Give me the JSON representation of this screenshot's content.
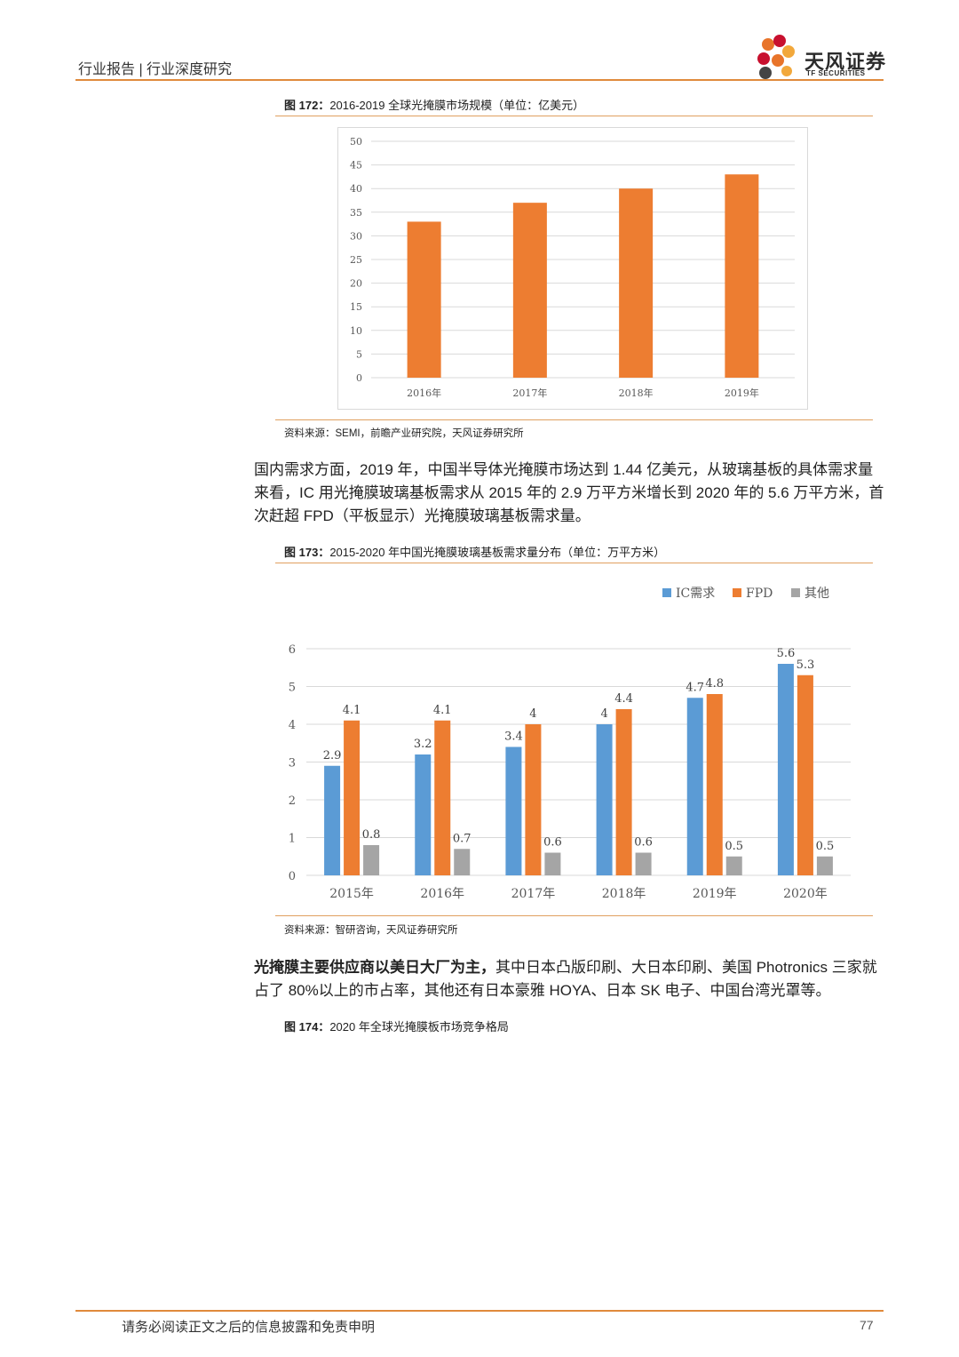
{
  "header": {
    "text": "行业报告 | 行业深度研究"
  },
  "logo": {
    "name": "天风证券",
    "sub": "TF SECURITIES",
    "colors": [
      "#e8742a",
      "#c8102e",
      "#f2a83b",
      "#444444"
    ]
  },
  "fig172": {
    "label": "图 172：",
    "title": "2016-2019 全球光掩膜市场规模（单位：亿美元）",
    "source": "资料来源：SEMI，前瞻产业研究院，天风证券研究所"
  },
  "para1": "国内需求方面，2019 年，中国半导体光掩膜市场达到 1.44 亿美元，从玻璃基板的具体需求量来看，IC 用光掩膜玻璃基板需求从 2015 年的 2.9 万平方米增长到 2020 年的 5.6 万平方米，首次赶超 FPD（平板显示）光掩膜玻璃基板需求量。",
  "fig173": {
    "label": "图 173：",
    "title": "2015-2020 年中国光掩膜玻璃基板需求量分布（单位：万平方米）",
    "source": "资料来源：智研咨询，天风证券研究所"
  },
  "para2_bold": "光掩膜主要供应商以美日大厂为主，",
  "para2_rest": "其中日本凸版印刷、大日本印刷、美国 Photronics 三家就占了 80%以上的市占率，其他还有日本豪雅 HOYA、日本 SK 电子、中国台湾光罩等。",
  "fig174": {
    "label": "图 174：",
    "title": "2020 年全球光掩膜板市场竞争格局"
  },
  "footer": {
    "text": "请务必阅读正文之后的信息披露和免责申明",
    "page": "77"
  },
  "chart_data": [
    {
      "type": "bar",
      "categories": [
        "2016年",
        "2017年",
        "2018年",
        "2019年"
      ],
      "series": [
        {
          "values": [
            33,
            37,
            40,
            43
          ],
          "color": "#ed7d31"
        }
      ],
      "ylim": [
        0,
        50
      ],
      "yticks": [
        0,
        5,
        10,
        15,
        20,
        25,
        30,
        35,
        40,
        45,
        50
      ],
      "grid": true
    },
    {
      "type": "bar",
      "categories": [
        "2015年",
        "2016年",
        "2017年",
        "2018年",
        "2019年",
        "2020年"
      ],
      "series": [
        {
          "name": "IC需求",
          "values": [
            2.9,
            3.2,
            3.4,
            4,
            4.7,
            5.6
          ],
          "color": "#5b9bd5"
        },
        {
          "name": "FPD",
          "values": [
            4.1,
            4.1,
            4,
            4.4,
            4.8,
            5.3
          ],
          "color": "#ed7d31"
        },
        {
          "name": "其他",
          "values": [
            0.8,
            0.7,
            0.6,
            0.6,
            0.5,
            0.5
          ],
          "color": "#a5a5a5"
        }
      ],
      "ylim": [
        0,
        6
      ],
      "yticks": [
        0,
        1,
        2,
        3,
        4,
        5,
        6
      ],
      "grid": true,
      "legend": "top-right",
      "data_labels": true
    }
  ]
}
